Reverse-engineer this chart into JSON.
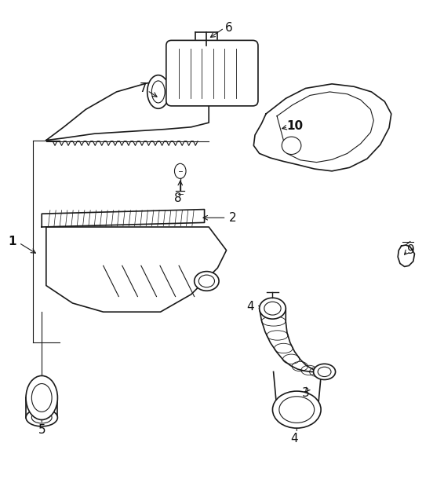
{
  "background_color": "#ffffff",
  "line_color": "#1a1a1a",
  "label_color": "#111111",
  "figsize": [
    5.66,
    6.15
  ],
  "dpi": 100
}
